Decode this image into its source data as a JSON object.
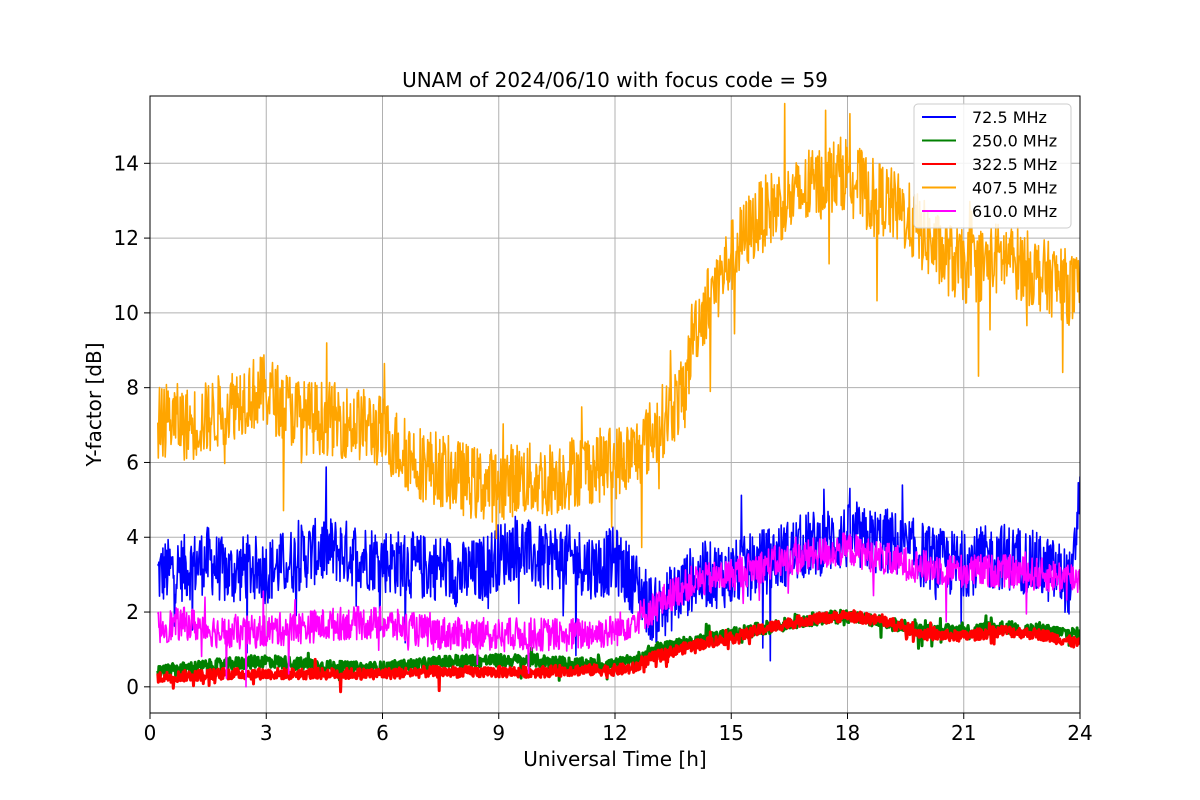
{
  "chart_data": {
    "type": "line",
    "title": "UNAM of 2024/06/10 with focus code = 59",
    "xlabel": "Universal Time [h]",
    "ylabel": "Y-factor [dB]",
    "xlim": [
      0,
      24
    ],
    "ylim": [
      -0.7,
      15.8
    ],
    "xticks": [
      0,
      3,
      6,
      9,
      12,
      15,
      18,
      21,
      24
    ],
    "yticks": [
      0,
      2,
      4,
      6,
      8,
      10,
      12,
      14
    ],
    "grid": true,
    "legend_position": "top-right",
    "series": [
      {
        "name": " 72.5 MHz",
        "color": "#0000ff",
        "x": [
          0.2,
          0.5,
          1.0,
          1.5,
          2.0,
          2.5,
          3.0,
          3.5,
          4.0,
          4.5,
          5.0,
          5.5,
          6.0,
          6.5,
          7.0,
          7.5,
          8.0,
          8.5,
          9.0,
          9.5,
          10.0,
          10.5,
          11.0,
          11.5,
          12.0,
          12.5,
          13.0,
          13.5,
          14.0,
          14.5,
          15.0,
          15.5,
          16.0,
          16.5,
          17.0,
          17.5,
          18.0,
          18.5,
          19.0,
          19.5,
          20.0,
          20.5,
          21.0,
          21.5,
          22.0,
          22.5,
          23.0,
          23.5,
          23.8,
          24.0
        ],
        "values": [
          3.0,
          3.1,
          3.2,
          3.4,
          3.0,
          3.2,
          3.1,
          3.3,
          3.5,
          3.7,
          3.6,
          3.5,
          3.4,
          3.3,
          3.2,
          3.2,
          3.0,
          3.1,
          3.5,
          3.8,
          3.4,
          3.5,
          3.4,
          3.2,
          3.4,
          2.8,
          2.0,
          2.4,
          2.9,
          3.0,
          3.0,
          3.2,
          3.4,
          3.6,
          3.8,
          3.9,
          4.0,
          3.9,
          3.9,
          3.7,
          3.5,
          3.3,
          3.3,
          3.4,
          3.5,
          3.4,
          3.2,
          3.0,
          2.7,
          5.5
        ],
        "spread": 1.8
      },
      {
        "name": "250.0 MHz",
        "color": "#008000",
        "x": [
          0.2,
          1.0,
          2.0,
          3.0,
          4.0,
          5.0,
          6.0,
          7.0,
          8.0,
          9.0,
          10.0,
          11.0,
          12.0,
          12.5,
          13.0,
          14.0,
          15.0,
          16.0,
          17.0,
          18.0,
          19.0,
          20.0,
          21.0,
          22.0,
          23.0,
          24.0
        ],
        "values": [
          0.4,
          0.5,
          0.6,
          0.7,
          0.6,
          0.5,
          0.5,
          0.6,
          0.7,
          0.7,
          0.7,
          0.6,
          0.6,
          0.7,
          1.0,
          1.2,
          1.4,
          1.6,
          1.8,
          1.9,
          1.7,
          1.5,
          1.5,
          1.6,
          1.5,
          1.4
        ],
        "spread": 0.35
      },
      {
        "name": "322.5 MHz",
        "color": "#ff0000",
        "x": [
          0.2,
          1.0,
          2.0,
          3.0,
          4.0,
          5.0,
          6.0,
          7.0,
          8.0,
          9.0,
          10.0,
          11.0,
          12.0,
          12.5,
          13.0,
          14.0,
          15.0,
          16.0,
          17.0,
          18.0,
          19.0,
          20.0,
          21.0,
          22.0,
          23.0,
          24.0
        ],
        "values": [
          0.25,
          0.3,
          0.35,
          0.35,
          0.35,
          0.35,
          0.35,
          0.4,
          0.4,
          0.4,
          0.4,
          0.45,
          0.45,
          0.5,
          0.8,
          1.1,
          1.3,
          1.6,
          1.8,
          1.9,
          1.75,
          1.4,
          1.35,
          1.5,
          1.4,
          1.15
        ],
        "spread": 0.3
      },
      {
        "name": "407.5 MHz",
        "color": "#ffa500",
        "x": [
          0.2,
          0.5,
          1.0,
          1.5,
          2.0,
          2.5,
          3.0,
          3.5,
          4.0,
          4.5,
          5.0,
          5.5,
          6.0,
          6.5,
          7.0,
          7.5,
          8.0,
          8.5,
          9.0,
          9.5,
          10.0,
          10.5,
          11.0,
          11.5,
          12.0,
          12.5,
          13.0,
          13.5,
          13.8,
          14.0,
          14.5,
          15.0,
          15.5,
          16.0,
          16.5,
          17.0,
          17.5,
          18.0,
          18.5,
          19.0,
          19.5,
          20.0,
          20.5,
          21.0,
          21.5,
          22.0,
          22.5,
          23.0,
          23.5,
          24.0
        ],
        "values": [
          7.0,
          7.2,
          7.0,
          7.2,
          7.5,
          7.8,
          7.9,
          7.5,
          7.2,
          7.2,
          7.1,
          7.0,
          6.8,
          6.3,
          6.0,
          5.8,
          5.6,
          5.4,
          5.4,
          5.6,
          5.5,
          5.6,
          5.8,
          5.9,
          6.0,
          6.2,
          6.8,
          7.5,
          7.8,
          9.5,
          10.5,
          11.5,
          12.3,
          12.8,
          13.0,
          13.3,
          13.6,
          13.8,
          13.2,
          13.0,
          12.6,
          12.0,
          11.5,
          11.2,
          11.3,
          11.5,
          11.3,
          11.0,
          10.8,
          10.5
        ],
        "spread": 2.0
      },
      {
        "name": "610.0 MHz",
        "color": "#ff00ff",
        "x": [
          0.2,
          1.0,
          2.0,
          3.0,
          4.0,
          5.0,
          6.0,
          7.0,
          8.0,
          9.0,
          10.0,
          11.0,
          12.0,
          12.5,
          13.0,
          13.5,
          14.0,
          15.0,
          16.0,
          17.0,
          18.0,
          19.0,
          20.0,
          21.0,
          22.0,
          23.0,
          24.0
        ],
        "values": [
          1.6,
          1.7,
          1.4,
          1.5,
          1.6,
          1.7,
          1.7,
          1.5,
          1.4,
          1.4,
          1.4,
          1.4,
          1.5,
          1.8,
          2.1,
          2.5,
          2.8,
          3.0,
          3.3,
          3.5,
          3.7,
          3.4,
          3.2,
          3.1,
          3.1,
          3.0,
          2.9
        ],
        "spread": 0.9
      }
    ]
  }
}
